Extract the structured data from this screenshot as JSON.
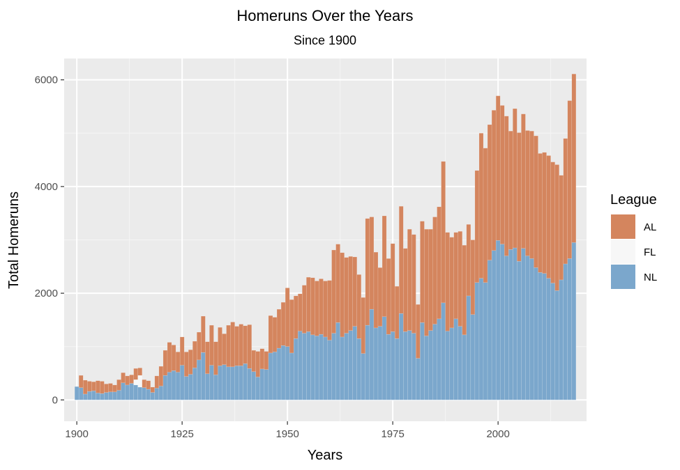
{
  "chart_data": {
    "type": "bar",
    "stacked": true,
    "title": "Homeruns Over the Years",
    "subtitle": "Since 1900",
    "xlabel": "Years",
    "ylabel": "Total Homeruns",
    "xlim": [
      1897,
      2021
    ],
    "ylim": [
      -400,
      6400
    ],
    "x_ticks": [
      1900,
      1925,
      1950,
      1975,
      2000
    ],
    "y_ticks": [
      0,
      2000,
      4000,
      6000
    ],
    "grid": true,
    "legend": {
      "title": "League",
      "position": "right",
      "entries": [
        "AL",
        "FL",
        "NL"
      ]
    },
    "colors": {
      "AL": "#D4855E",
      "FL": "#F7F7F7",
      "NL": "#7BA7CC",
      "panel": "#EBEBEB",
      "grid": "#FFFFFF"
    },
    "x": [
      1900,
      1901,
      1902,
      1903,
      1904,
      1905,
      1906,
      1907,
      1908,
      1909,
      1910,
      1911,
      1912,
      1913,
      1914,
      1915,
      1916,
      1917,
      1918,
      1919,
      1920,
      1921,
      1922,
      1923,
      1924,
      1925,
      1926,
      1927,
      1928,
      1929,
      1930,
      1931,
      1932,
      1933,
      1934,
      1935,
      1936,
      1937,
      1938,
      1939,
      1940,
      1941,
      1942,
      1943,
      1944,
      1945,
      1946,
      1947,
      1948,
      1949,
      1950,
      1951,
      1952,
      1953,
      1954,
      1955,
      1956,
      1957,
      1958,
      1959,
      1960,
      1961,
      1962,
      1963,
      1964,
      1965,
      1966,
      1967,
      1968,
      1969,
      1970,
      1971,
      1972,
      1973,
      1974,
      1975,
      1976,
      1977,
      1978,
      1979,
      1980,
      1981,
      1982,
      1983,
      1984,
      1985,
      1986,
      1987,
      1988,
      1989,
      1990,
      1991,
      1992,
      1993,
      1994,
      1995,
      1996,
      1997,
      1998,
      1999,
      2000,
      2001,
      2002,
      2003,
      2004,
      2005,
      2006,
      2007,
      2008,
      2009,
      2010,
      2011,
      2012,
      2013,
      2014,
      2015,
      2016,
      2017,
      2018
    ],
    "series": [
      {
        "name": "NL",
        "values": [
          250,
          230,
          110,
          160,
          170,
          130,
          120,
          140,
          150,
          150,
          180,
          320,
          280,
          310,
          280,
          240,
          230,
          200,
          140,
          220,
          260,
          460,
          520,
          550,
          520,
          650,
          440,
          480,
          600,
          750,
          890,
          490,
          650,
          470,
          640,
          660,
          620,
          620,
          640,
          640,
          680,
          590,
          530,
          430,
          580,
          570,
          880,
          900,
          970,
          1020,
          1000,
          880,
          1150,
          1290,
          1250,
          1280,
          1220,
          1200,
          1230,
          1180,
          1120,
          1250,
          1450,
          1180,
          1250,
          1300,
          1380,
          1150,
          870,
          1400,
          1700,
          1350,
          1380,
          1560,
          1230,
          1280,
          1150,
          1620,
          1280,
          1300,
          1250,
          780,
          1450,
          1200,
          1300,
          1420,
          1520,
          1820,
          1290,
          1350,
          1520,
          1380,
          1220,
          1950,
          1600,
          2200,
          2280,
          2200,
          2620,
          2800,
          2990,
          2920,
          2700,
          2820,
          2850,
          2600,
          2840,
          2700,
          2650,
          2480,
          2390,
          2370,
          2280,
          2190,
          2050,
          2250,
          2550,
          2650,
          2950
        ]
      },
      {
        "name": "FL",
        "values": [
          0,
          0,
          0,
          0,
          0,
          0,
          0,
          0,
          0,
          0,
          0,
          0,
          0,
          0,
          100,
          220,
          0,
          0,
          0,
          0,
          0,
          0,
          0,
          0,
          0,
          0,
          0,
          0,
          0,
          0,
          0,
          0,
          0,
          0,
          0,
          0,
          0,
          0,
          0,
          0,
          0,
          0,
          0,
          0,
          0,
          0,
          0,
          0,
          0,
          0,
          0,
          0,
          0,
          0,
          0,
          0,
          0,
          0,
          0,
          0,
          0,
          0,
          0,
          0,
          0,
          0,
          0,
          0,
          0,
          0,
          0,
          0,
          0,
          0,
          0,
          0,
          0,
          0,
          0,
          0,
          0,
          0,
          0,
          0,
          0,
          0,
          0,
          0,
          0,
          0,
          0,
          0,
          0,
          0,
          0,
          0,
          0,
          0,
          0,
          0,
          0,
          0,
          0,
          0,
          0,
          0,
          0,
          0,
          0,
          0,
          0,
          0,
          0,
          0,
          0,
          0,
          0,
          0,
          0
        ]
      },
      {
        "name": "AL",
        "values": [
          0,
          230,
          260,
          190,
          170,
          230,
          230,
          160,
          160,
          130,
          200,
          190,
          170,
          160,
          210,
          140,
          150,
          160,
          100,
          230,
          370,
          470,
          560,
          480,
          380,
          530,
          460,
          460,
          500,
          520,
          680,
          600,
          750,
          620,
          720,
          580,
          780,
          840,
          740,
          780,
          710,
          820,
          400,
          480,
          380,
          340,
          700,
          650,
          730,
          810,
          1100,
          1000,
          800,
          700,
          900,
          1020,
          1070,
          1030,
          1040,
          1050,
          1120,
          1560,
          1470,
          1580,
          1420,
          1390,
          1300,
          1200,
          1050,
          2000,
          1730,
          1420,
          1100,
          1890,
          1420,
          1650,
          980,
          2010,
          1560,
          1900,
          1850,
          1010,
          1900,
          2000,
          1900,
          2010,
          2100,
          2650,
          1850,
          1700,
          1620,
          1780,
          1680,
          1340,
          1400,
          2100,
          2720,
          2520,
          2540,
          2630,
          2710,
          2600,
          2620,
          2220,
          2610,
          2410,
          2520,
          2350,
          2390,
          2470,
          2230,
          2270,
          2300,
          2270,
          2360,
          1960,
          2350,
          2960,
          3160
        ]
      }
    ]
  }
}
